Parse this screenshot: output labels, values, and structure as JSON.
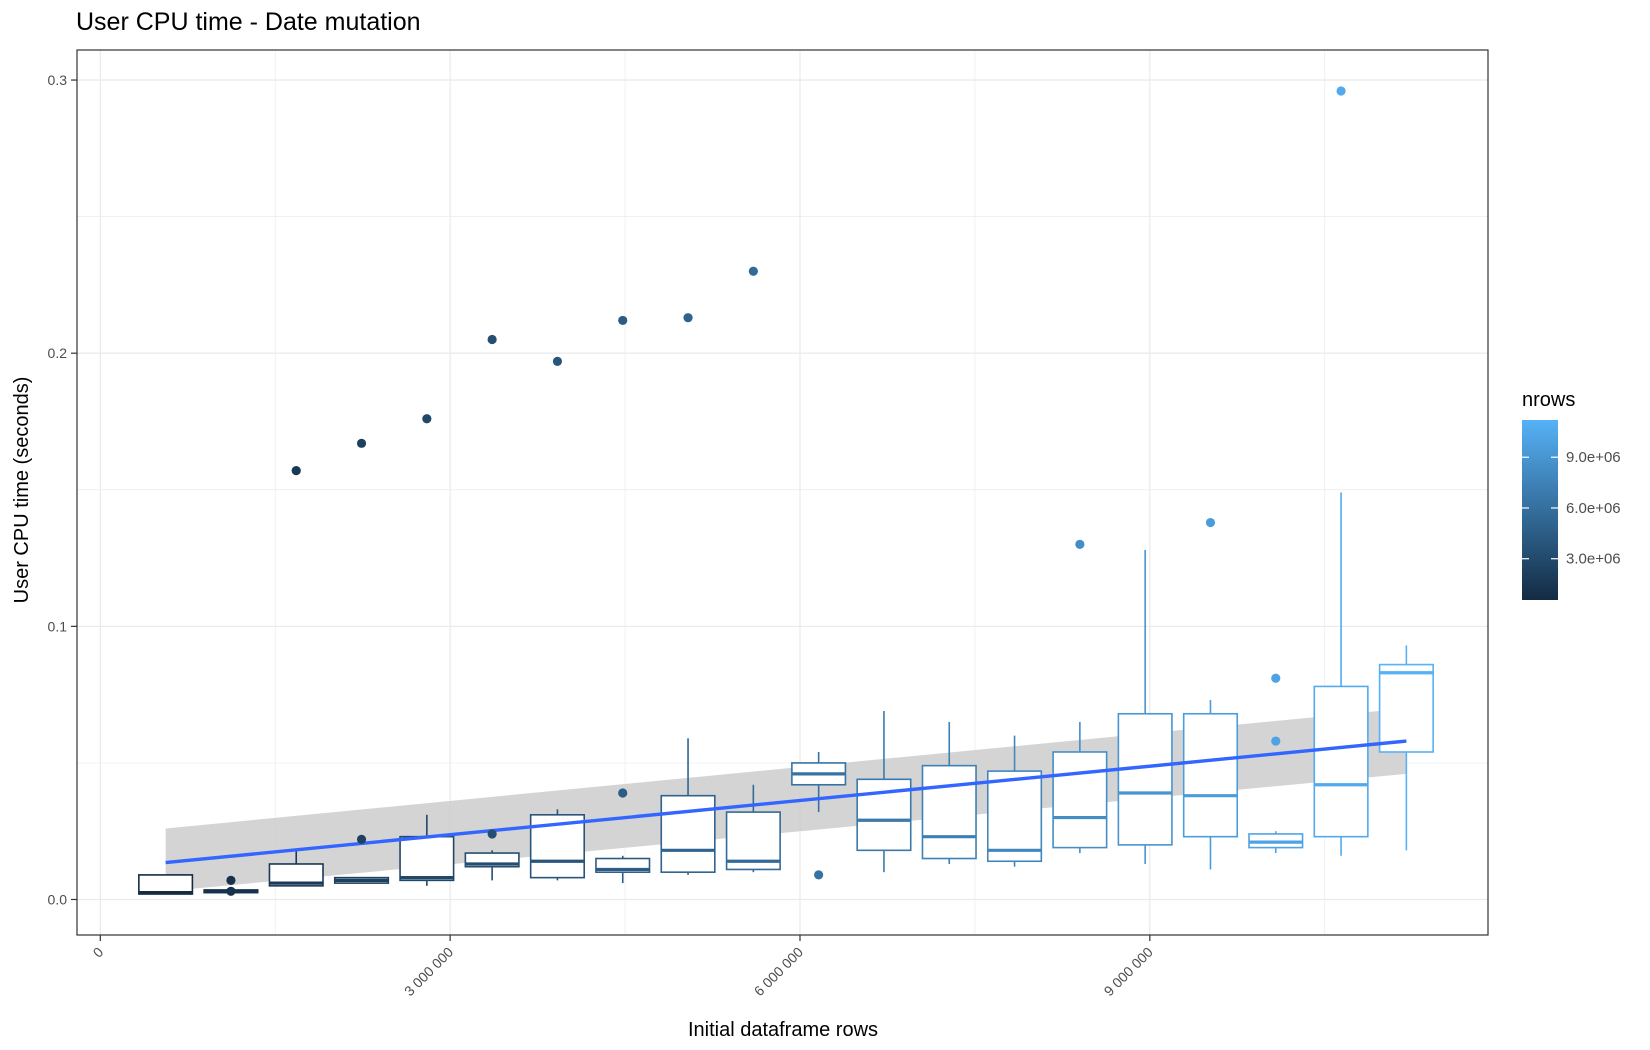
{
  "chart_data": {
    "type": "boxplot",
    "title": "User CPU time - Date mutation",
    "xlabel": "Initial dataframe rows",
    "ylabel": "User CPU time (seconds)",
    "xlim": [
      -200000,
      11900000
    ],
    "ylim": [
      -0.013,
      0.311
    ],
    "x_ticks": [
      {
        "value": 0,
        "label": "0"
      },
      {
        "value": 3000000,
        "label": "3 000 000"
      },
      {
        "value": 6000000,
        "label": "6 000 000"
      },
      {
        "value": 9000000,
        "label": "9 000 000"
      }
    ],
    "y_ticks": [
      {
        "value": 0.0,
        "label": "0.0"
      },
      {
        "value": 0.1,
        "label": "0.1"
      },
      {
        "value": 0.2,
        "label": "0.2"
      },
      {
        "value": 0.3,
        "label": "0.3"
      }
    ],
    "grid": true,
    "legend": {
      "title": "nrows",
      "position": "right",
      "type": "colorbar",
      "range": [
        560000,
        11200000
      ],
      "colors": [
        "#132b43",
        "#56b1f7"
      ],
      "ticks": [
        {
          "value": 3000000,
          "label": "3.0e+06"
        },
        {
          "value": 6000000,
          "label": "6.0e+06"
        },
        {
          "value": 9000000,
          "label": "9.0e+06"
        }
      ]
    },
    "boxes": [
      {
        "x": 560000,
        "lower": 0.002,
        "q1": 0.002,
        "median": 0.0025,
        "q3": 0.009,
        "upper": 0.009,
        "outliers": []
      },
      {
        "x": 1120000,
        "lower": 0.0025,
        "q1": 0.0025,
        "median": 0.003,
        "q3": 0.0035,
        "upper": 0.0035,
        "outliers": [
          0.007,
          0.003
        ]
      },
      {
        "x": 1680000,
        "lower": 0.005,
        "q1": 0.005,
        "median": 0.006,
        "q3": 0.013,
        "upper": 0.018,
        "outliers": [
          0.157
        ]
      },
      {
        "x": 2240000,
        "lower": 0.006,
        "q1": 0.006,
        "median": 0.007,
        "q3": 0.008,
        "upper": 0.008,
        "outliers": [
          0.022,
          0.167
        ]
      },
      {
        "x": 2800000,
        "lower": 0.005,
        "q1": 0.007,
        "median": 0.008,
        "q3": 0.023,
        "upper": 0.031,
        "outliers": [
          0.176
        ]
      },
      {
        "x": 3360000,
        "lower": 0.007,
        "q1": 0.012,
        "median": 0.013,
        "q3": 0.017,
        "upper": 0.018,
        "outliers": [
          0.024,
          0.205
        ]
      },
      {
        "x": 3920000,
        "lower": 0.007,
        "q1": 0.008,
        "median": 0.014,
        "q3": 0.031,
        "upper": 0.033,
        "outliers": [
          0.197
        ]
      },
      {
        "x": 4480000,
        "lower": 0.006,
        "q1": 0.01,
        "median": 0.011,
        "q3": 0.015,
        "upper": 0.016,
        "outliers": [
          0.039,
          0.212
        ]
      },
      {
        "x": 5040000,
        "lower": 0.009,
        "q1": 0.01,
        "median": 0.018,
        "q3": 0.038,
        "upper": 0.059,
        "outliers": [
          0.213
        ]
      },
      {
        "x": 5600000,
        "lower": 0.01,
        "q1": 0.011,
        "median": 0.014,
        "q3": 0.032,
        "upper": 0.042,
        "outliers": [
          0.23
        ]
      },
      {
        "x": 6160000,
        "lower": 0.032,
        "q1": 0.042,
        "median": 0.046,
        "q3": 0.05,
        "upper": 0.054,
        "outliers": [
          0.009
        ]
      },
      {
        "x": 6720000,
        "lower": 0.01,
        "q1": 0.018,
        "median": 0.029,
        "q3": 0.044,
        "upper": 0.069,
        "outliers": []
      },
      {
        "x": 7280000,
        "lower": 0.013,
        "q1": 0.015,
        "median": 0.023,
        "q3": 0.049,
        "upper": 0.065,
        "outliers": []
      },
      {
        "x": 7840000,
        "lower": 0.012,
        "q1": 0.014,
        "median": 0.018,
        "q3": 0.047,
        "upper": 0.06,
        "outliers": []
      },
      {
        "x": 8400000,
        "lower": 0.017,
        "q1": 0.019,
        "median": 0.03,
        "q3": 0.054,
        "upper": 0.065,
        "outliers": [
          0.13
        ]
      },
      {
        "x": 8960000,
        "lower": 0.013,
        "q1": 0.02,
        "median": 0.039,
        "q3": 0.068,
        "upper": 0.128,
        "outliers": []
      },
      {
        "x": 9520000,
        "lower": 0.011,
        "q1": 0.023,
        "median": 0.038,
        "q3": 0.068,
        "upper": 0.073,
        "outliers": [
          0.138
        ]
      },
      {
        "x": 10080000,
        "lower": 0.017,
        "q1": 0.019,
        "median": 0.021,
        "q3": 0.024,
        "upper": 0.025,
        "outliers": [
          0.081,
          0.058
        ]
      },
      {
        "x": 10640000,
        "lower": 0.016,
        "q1": 0.023,
        "median": 0.042,
        "q3": 0.078,
        "upper": 0.149,
        "outliers": [
          0.296
        ]
      },
      {
        "x": 11200000,
        "lower": 0.018,
        "q1": 0.054,
        "median": 0.083,
        "q3": 0.086,
        "upper": 0.093,
        "outliers": []
      }
    ],
    "smooth": {
      "method": "lm",
      "color": "#3366ff",
      "band_color": "#cccccc",
      "x": [
        560000,
        11200000
      ],
      "y": [
        0.0135,
        0.058
      ],
      "lower": [
        0.003,
        0.046
      ],
      "upper": [
        0.026,
        0.07
      ]
    }
  }
}
